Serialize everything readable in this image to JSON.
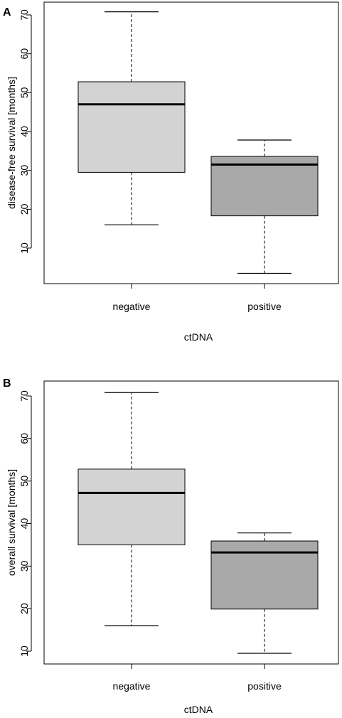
{
  "chart_data": [
    {
      "type": "box",
      "panel_label": "A",
      "title": "",
      "xlabel": "ctDNA",
      "ylabel": "disease-free survival [months]",
      "ylim": [
        0,
        73
      ],
      "yticks": [
        10,
        20,
        30,
        40,
        50,
        60,
        70
      ],
      "categories": [
        "negative",
        "positive"
      ],
      "boxes": [
        {
          "category": "negative",
          "min": 16,
          "q1": 29.5,
          "median": 47,
          "q3": 52.8,
          "max": 70.8,
          "color": "#d3d3d3"
        },
        {
          "category": "positive",
          "min": 3.5,
          "q1": 18.3,
          "median": 31.5,
          "q3": 33.6,
          "max": 37.8,
          "color": "#a9a9a9"
        }
      ]
    },
    {
      "type": "box",
      "panel_label": "B",
      "title": "",
      "xlabel": "ctDNA",
      "ylabel": "overall survival [months]",
      "ylim": [
        8,
        73
      ],
      "yticks": [
        10,
        20,
        30,
        40,
        50,
        60,
        70
      ],
      "categories": [
        "negative",
        "positive"
      ],
      "boxes": [
        {
          "category": "negative",
          "min": 16,
          "q1": 35,
          "median": 47.2,
          "q3": 52.8,
          "max": 70.8,
          "color": "#d3d3d3"
        },
        {
          "category": "positive",
          "min": 9.5,
          "q1": 19.9,
          "median": 33.2,
          "q3": 35.9,
          "max": 37.8,
          "color": "#a9a9a9"
        }
      ]
    }
  ]
}
